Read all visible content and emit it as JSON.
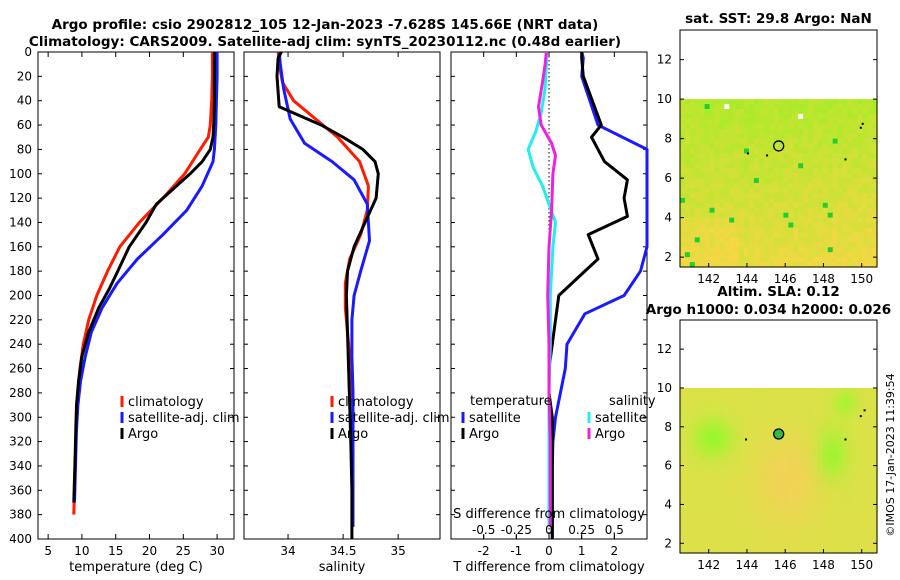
{
  "title": {
    "line1": "Argo profile: csio 2902812_105 12-Jan-2023 -7.628S 145.66E (NRT data)",
    "line2": "Climatology: CARS2009. Satellite-adj clim: synTS_20230112.nc (0.48d earlier)"
  },
  "side_label": "©IMOS 17-Jan-2023 11:39:54",
  "colors": {
    "climatology": "#ff1a00",
    "satellite": "#1a1aff",
    "argo": "#000000",
    "cyan": "#22eeee",
    "magenta": "#ee22dd"
  },
  "chart_data": [
    {
      "type": "line",
      "name": "temperature-panel",
      "xlabel": "temperature (deg C)",
      "ylabel": "",
      "xlim": [
        3.5,
        32.5
      ],
      "ylim": [
        0,
        400
      ],
      "y_reversed": true,
      "xticks": [
        5,
        10,
        15,
        20,
        25,
        30
      ],
      "yticks": [
        0,
        20,
        40,
        60,
        80,
        100,
        120,
        140,
        160,
        180,
        200,
        220,
        240,
        260,
        280,
        300,
        320,
        340,
        360,
        380,
        400
      ],
      "legend": [
        "climatology",
        "satellite-adj. clim",
        "Argo"
      ],
      "legend_position": "lower-right",
      "series": [
        {
          "name": "climatology",
          "color": "#ff1a00",
          "x": [
            29.3,
            29.3,
            29.2,
            29.0,
            28.7,
            27.5,
            25.2,
            22.0,
            18.5,
            15.6,
            13.8,
            12.2,
            11.0,
            10.2,
            9.7,
            9.4,
            9.2,
            9.1,
            9.0,
            8.9,
            8.8
          ],
          "y": [
            0,
            20,
            40,
            60,
            70,
            80,
            100,
            120,
            140,
            160,
            180,
            200,
            220,
            240,
            260,
            280,
            300,
            320,
            340,
            360,
            380
          ]
        },
        {
          "name": "satellite-adj. clim",
          "color": "#1a1aff",
          "x": [
            30.0,
            30.0,
            29.9,
            29.8,
            29.6,
            29.4,
            27.8,
            25.5,
            22.0,
            18.2,
            15.2,
            13.0,
            11.4,
            10.5,
            9.8,
            9.4,
            9.2,
            9.1,
            9.0,
            8.9
          ],
          "y": [
            0,
            20,
            40,
            60,
            80,
            90,
            110,
            130,
            150,
            170,
            190,
            210,
            230,
            250,
            270,
            290,
            310,
            330,
            350,
            370
          ]
        },
        {
          "name": "Argo",
          "color": "#000000",
          "x": [
            29.6,
            29.6,
            29.6,
            29.5,
            29.4,
            29.0,
            27.8,
            26.0,
            24.0,
            21.0,
            19.5,
            17.0,
            15.3,
            14.0,
            12.5,
            11.0,
            10.0,
            9.5,
            9.2,
            9.1,
            9.0,
            8.9,
            8.8
          ],
          "y": [
            0,
            20,
            40,
            60,
            70,
            80,
            90,
            100,
            110,
            125,
            140,
            160,
            180,
            195,
            210,
            230,
            250,
            270,
            290,
            310,
            330,
            350,
            370
          ]
        }
      ]
    },
    {
      "type": "line",
      "name": "salinity-panel",
      "xlabel": "salinity",
      "xlim": [
        33.6,
        35.38
      ],
      "ylim": [
        0,
        400
      ],
      "y_reversed": true,
      "xticks": [
        34,
        34.5,
        35
      ],
      "xtick_labels": [
        "34",
        "34.5",
        "35"
      ],
      "legend": [
        "climatology",
        "satellite-adj. clim",
        "Argo"
      ],
      "legend_position": "lower-right",
      "series": [
        {
          "name": "climatology",
          "color": "#ff1a00",
          "x": [
            33.91,
            33.92,
            33.95,
            34.05,
            34.25,
            34.45,
            34.65,
            34.73,
            34.72,
            34.66,
            34.56,
            34.52,
            34.52,
            34.55,
            34.58,
            34.59,
            34.59,
            34.59,
            34.59
          ],
          "y": [
            0,
            10,
            25,
            40,
            55,
            70,
            90,
            110,
            130,
            150,
            170,
            190,
            210,
            240,
            270,
            300,
            330,
            360,
            390
          ]
        },
        {
          "name": "satellite-adj. clim",
          "color": "#1a1aff",
          "x": [
            33.92,
            33.93,
            33.96,
            34.02,
            34.15,
            34.4,
            34.6,
            34.72,
            34.74,
            34.66,
            34.6,
            34.58,
            34.58,
            34.59,
            34.59,
            34.59,
            34.59
          ],
          "y": [
            0,
            10,
            30,
            55,
            75,
            90,
            105,
            125,
            155,
            180,
            200,
            220,
            250,
            280,
            310,
            340,
            390
          ]
        },
        {
          "name": "Argo",
          "color": "#000000",
          "x": [
            33.94,
            33.91,
            33.9,
            33.92,
            34.3,
            34.5,
            34.68,
            34.79,
            34.82,
            34.8,
            34.7,
            34.6,
            34.54,
            34.53,
            34.54,
            34.55,
            34.56,
            34.57,
            34.58,
            34.58
          ],
          "y": [
            0,
            5,
            20,
            45,
            60,
            70,
            80,
            90,
            100,
            120,
            140,
            160,
            180,
            200,
            230,
            260,
            290,
            320,
            360,
            400
          ]
        }
      ]
    },
    {
      "type": "line",
      "name": "difference-panel",
      "xlabel": "T difference from climatology",
      "xlabel_top": "S difference from climatology",
      "xlim": [
        -3.0,
        3.0
      ],
      "ylim": [
        0,
        400
      ],
      "y_reversed": true,
      "xticks": [
        -2,
        -1,
        0,
        1,
        2
      ],
      "xtick_labels": [
        "-2",
        "-1",
        "0",
        "1",
        "2"
      ],
      "s_ticks": [
        -0.5,
        -0.25,
        0,
        0.25,
        0.5
      ],
      "s_tick_labels": [
        "-0.5",
        "-0.25",
        "0",
        "0.25",
        "0.5"
      ],
      "zero_line": "dotted",
      "legend_temperature": {
        "title": "temperature",
        "items": [
          "satellite",
          "Argo"
        ]
      },
      "legend_salinity": {
        "title": "salinity",
        "items": [
          "satellite",
          "Argo"
        ]
      },
      "series": [
        {
          "name": "T satellite",
          "color": "#1a1aff",
          "x": [
            1.0,
            1.05,
            1.0,
            1.5,
            3.0,
            3.0,
            3.0,
            3.0,
            2.8,
            2.3,
            1.1,
            0.55,
            0.5,
            0.35,
            0.2,
            0.12,
            0.1,
            0.1,
            0.1
          ],
          "y": [
            0,
            5,
            20,
            60,
            80,
            100,
            140,
            160,
            180,
            200,
            215,
            240,
            260,
            280,
            300,
            320,
            340,
            370,
            400
          ]
        },
        {
          "name": "T Argo",
          "color": "#000000",
          "x": [
            1.0,
            1.0,
            1.05,
            1.6,
            1.3,
            1.7,
            2.4,
            2.3,
            2.4,
            1.2,
            1.5,
            1.1,
            0.3,
            0.0,
            0.0,
            0.1,
            0.1,
            0.1,
            0.1
          ],
          "y": [
            0,
            5,
            20,
            60,
            70,
            90,
            105,
            120,
            135,
            150,
            170,
            180,
            200,
            260,
            280,
            300,
            320,
            360,
            400
          ]
        },
        {
          "name": "S satellite",
          "color": "#22eeee",
          "x": [
            -0.02,
            -0.02,
            -0.03,
            -0.06,
            -0.1,
            -0.16,
            -0.12,
            -0.05,
            0.0,
            0.05,
            0.03,
            0.02,
            0.01,
            0.01,
            0.0,
            0.0,
            0.0
          ],
          "y": [
            0,
            10,
            30,
            50,
            65,
            80,
            95,
            110,
            125,
            140,
            160,
            180,
            200,
            240,
            280,
            320,
            390
          ]
        },
        {
          "name": "S Argo",
          "color": "#ee22dd",
          "x": [
            -0.02,
            -0.03,
            -0.05,
            -0.08,
            -0.06,
            0.02,
            0.05,
            0.03,
            0.02,
            0.0,
            -0.01,
            0.0,
            0.0,
            0.01,
            0.01
          ],
          "y": [
            0,
            10,
            25,
            45,
            60,
            75,
            85,
            100,
            130,
            160,
            200,
            240,
            280,
            320,
            390
          ]
        }
      ]
    },
    {
      "type": "heatmap",
      "name": "sst-map",
      "title": "sat. SST: 29.8 Argo: NaN",
      "xticks": [
        142,
        144,
        146,
        148,
        150
      ],
      "yticks": [
        2,
        4,
        6,
        8,
        10,
        12
      ],
      "xlim": [
        140.5,
        150.8
      ],
      "ylim": [
        1.5,
        13.5
      ],
      "data_north_limit": 10,
      "marker": {
        "x": 145.66,
        "y": 7.63
      }
    },
    {
      "type": "heatmap",
      "name": "sla-map",
      "title": "Altim. SLA: 0.12",
      "subtitle": "Argo h1000: 0.034 h2000: 0.026",
      "xticks": [
        142,
        144,
        146,
        148,
        150
      ],
      "yticks": [
        2,
        4,
        6,
        8,
        10,
        12
      ],
      "xlim": [
        140.5,
        150.8
      ],
      "ylim": [
        1.5,
        13.5
      ],
      "data_north_limit": 10,
      "marker": {
        "x": 145.66,
        "y": 7.63
      }
    }
  ]
}
